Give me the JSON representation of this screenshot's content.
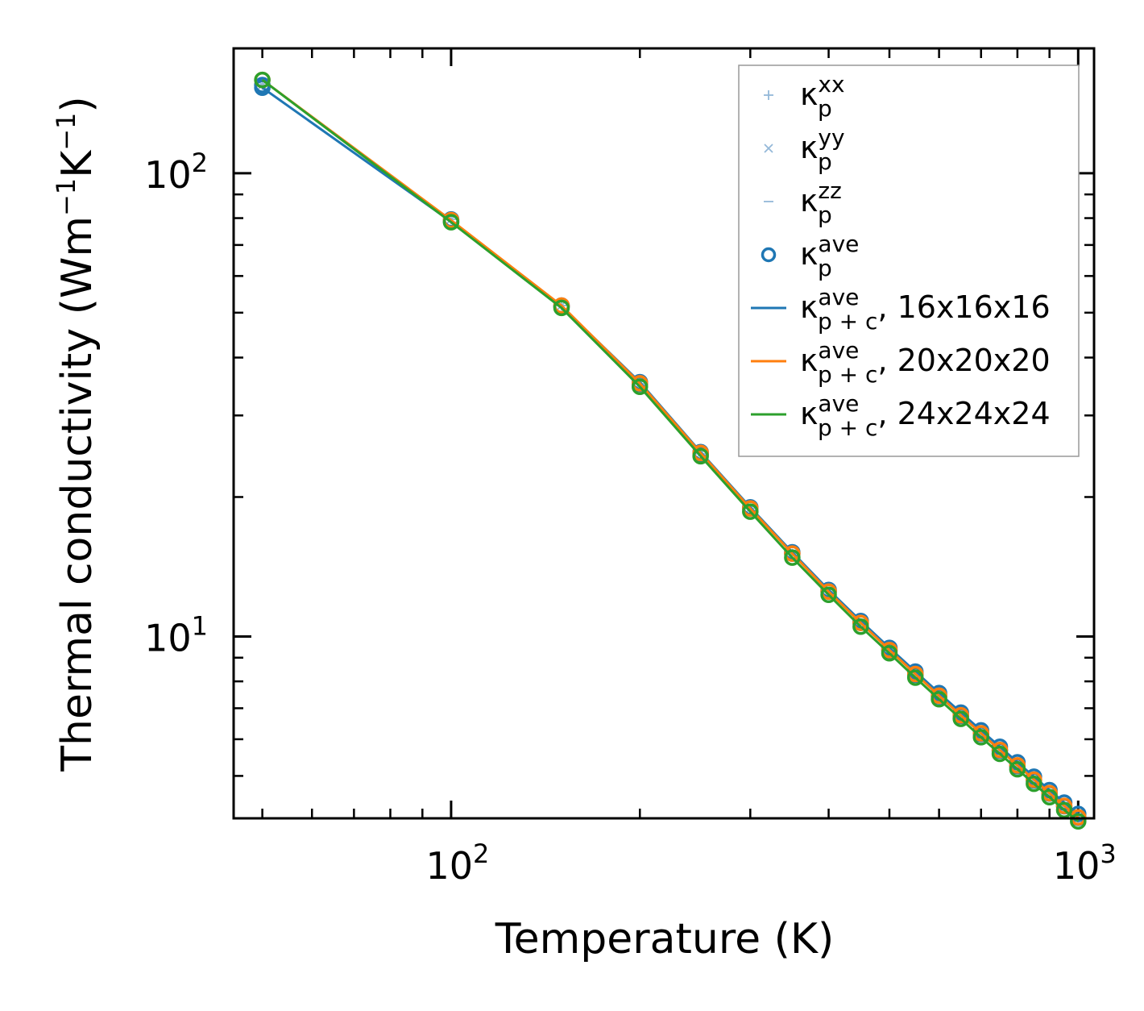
{
  "chart_data": {
    "type": "line",
    "xscale": "log",
    "yscale": "log",
    "xlabel": "Temperature (K)",
    "ylabel": "Thermal conductivity (Wm⁻¹K⁻¹)",
    "xlim": [
      45,
      1060
    ],
    "ylim": [
      4.05,
      186
    ],
    "x_ticks": [
      {
        "base": "10",
        "exp": "2",
        "value": 100
      },
      {
        "base": "10",
        "exp": "3",
        "value": 1000
      }
    ],
    "y_ticks": [
      {
        "base": "10",
        "exp": "1",
        "value": 10
      },
      {
        "base": "10",
        "exp": "2",
        "value": 100
      }
    ],
    "legend_position": "top-right",
    "x": [
      50,
      100,
      150,
      200,
      250,
      300,
      350,
      400,
      450,
      500,
      550,
      600,
      650,
      700,
      750,
      800,
      850,
      900,
      950,
      1000
    ],
    "series": [
      {
        "name": "κ_p^xx",
        "sym": "κ",
        "sub": "p",
        "sup": "xx",
        "suffix": "",
        "kind": "marker",
        "marker": "plus",
        "color": "#94b8d8",
        "values": [
          155,
          79.5,
          51.8,
          35.1,
          24.8,
          18.9,
          15.1,
          12.5,
          10.7,
          9.33,
          8.27,
          7.43,
          6.74,
          6.16,
          5.67,
          5.25,
          4.89,
          4.58,
          4.3,
          4.06
        ]
      },
      {
        "name": "κ_p^yy",
        "sym": "κ",
        "sub": "p",
        "sup": "yy",
        "suffix": "",
        "kind": "marker",
        "marker": "x",
        "color": "#94b8d8",
        "values": [
          155,
          79.5,
          51.8,
          35.1,
          24.8,
          18.9,
          15.1,
          12.5,
          10.7,
          9.33,
          8.27,
          7.43,
          6.74,
          6.16,
          5.67,
          5.25,
          4.89,
          4.58,
          4.3,
          4.06
        ]
      },
      {
        "name": "κ_p^zz",
        "sym": "κ",
        "sub": "p",
        "sup": "zz",
        "suffix": "",
        "kind": "marker",
        "marker": "dash",
        "color": "#94b8d8",
        "values": [
          155,
          79.5,
          51.8,
          35.1,
          24.8,
          18.9,
          15.1,
          12.5,
          10.7,
          9.33,
          8.27,
          7.43,
          6.74,
          6.16,
          5.67,
          5.25,
          4.89,
          4.58,
          4.3,
          4.06
        ]
      },
      {
        "name": "κ_p^ave",
        "sym": "κ",
        "sub": "p",
        "sup": "ave",
        "suffix": "",
        "kind": "marker",
        "marker": "circle",
        "color": "#1f77b4",
        "values": [
          155,
          79.5,
          51.8,
          35.1,
          24.8,
          18.9,
          15.1,
          12.5,
          10.7,
          9.33,
          8.27,
          7.43,
          6.74,
          6.16,
          5.67,
          5.25,
          4.89,
          4.58,
          4.3,
          4.06
        ]
      },
      {
        "name": "κ_p+c^ave, 16x16x16",
        "sym": "κ",
        "sub": "p + c",
        "sup": "ave",
        "suffix": ", 16x16x16",
        "kind": "line+circle",
        "color": "#1f77b4",
        "values": [
          153,
          78.6,
          51.6,
          35.4,
          25.0,
          19.0,
          15.2,
          12.6,
          10.8,
          9.45,
          8.4,
          7.55,
          6.85,
          6.27,
          5.78,
          5.35,
          4.98,
          4.66,
          4.38,
          4.14
        ]
      },
      {
        "name": "κ_p+c^ave, 20x20x20",
        "sym": "κ",
        "sub": "p + c",
        "sup": "ave",
        "suffix": ", 20x20x20",
        "kind": "line+circle",
        "color": "#ff7f0e",
        "values": [
          159,
          79.2,
          51.8,
          35.2,
          24.9,
          18.9,
          15.1,
          12.5,
          10.7,
          9.35,
          8.3,
          7.45,
          6.76,
          6.18,
          5.69,
          5.27,
          4.91,
          4.59,
          4.31,
          4.07
        ]
      },
      {
        "name": "κ_p+c^ave, 24x24x24",
        "sym": "κ",
        "sub": "p + c",
        "sup": "ave",
        "suffix": ", 24x24x24",
        "kind": "line+circle",
        "color": "#2ca02c",
        "values": [
          159,
          78.4,
          51.2,
          34.6,
          24.5,
          18.6,
          14.8,
          12.3,
          10.5,
          9.2,
          8.15,
          7.32,
          6.64,
          6.06,
          5.58,
          5.17,
          4.81,
          4.5,
          4.22,
          3.99
        ]
      }
    ]
  }
}
